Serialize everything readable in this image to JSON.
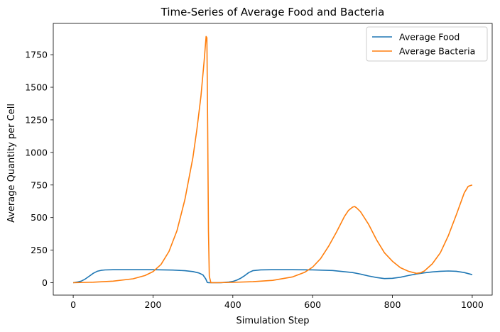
{
  "chart_data": {
    "type": "line",
    "title": "Time-Series of Average Food and Bacteria",
    "xlabel": "Simulation Step",
    "ylabel": "Average Quantity per Cell",
    "xlim": [
      -50,
      1050
    ],
    "ylim": [
      -95,
      1990
    ],
    "xticks": [
      0,
      200,
      400,
      600,
      800,
      1000
    ],
    "yticks": [
      0,
      250,
      500,
      750,
      1000,
      1250,
      1500,
      1750
    ],
    "grid": false,
    "legend_position": "top-right",
    "series": [
      {
        "name": "Average Food",
        "color": "#1f77b4",
        "x": [
          0,
          10,
          20,
          30,
          40,
          50,
          60,
          70,
          80,
          100,
          150,
          200,
          250,
          280,
          300,
          315,
          325,
          332,
          336,
          340,
          350,
          370,
          390,
          400,
          410,
          420,
          430,
          440,
          450,
          470,
          500,
          550,
          600,
          650,
          700,
          720,
          740,
          760,
          780,
          800,
          820,
          840,
          860,
          880,
          900,
          920,
          940,
          960,
          980,
          1000
        ],
        "y": [
          0,
          5,
          12,
          28,
          50,
          72,
          88,
          95,
          98,
          100,
          100,
          100,
          97,
          92,
          86,
          75,
          60,
          30,
          2,
          0,
          0,
          1,
          5,
          10,
          20,
          35,
          55,
          78,
          92,
          99,
          100,
          100,
          99,
          94,
          78,
          66,
          52,
          40,
          32,
          34,
          42,
          55,
          67,
          76,
          83,
          88,
          90,
          88,
          78,
          62
        ]
      },
      {
        "name": "Average Bacteria",
        "color": "#ff7f0e",
        "x": [
          0,
          50,
          100,
          150,
          180,
          200,
          220,
          240,
          260,
          280,
          300,
          310,
          320,
          328,
          333,
          335,
          337,
          339,
          341,
          345,
          360,
          400,
          450,
          500,
          550,
          580,
          600,
          620,
          640,
          660,
          680,
          690,
          700,
          705,
          710,
          720,
          740,
          760,
          780,
          800,
          820,
          840,
          860,
          870,
          880,
          900,
          920,
          940,
          960,
          980,
          990,
          1000
        ],
        "y": [
          0,
          4,
          12,
          30,
          55,
          85,
          140,
          240,
          400,
          640,
          960,
          1180,
          1430,
          1700,
          1890,
          1880,
          1200,
          400,
          50,
          0,
          0,
          3,
          8,
          18,
          45,
          80,
          120,
          185,
          280,
          390,
          510,
          555,
          580,
          585,
          575,
          545,
          450,
          330,
          230,
          165,
          115,
          88,
          72,
          76,
          90,
          145,
          230,
          360,
          520,
          690,
          740,
          750
        ]
      }
    ]
  }
}
